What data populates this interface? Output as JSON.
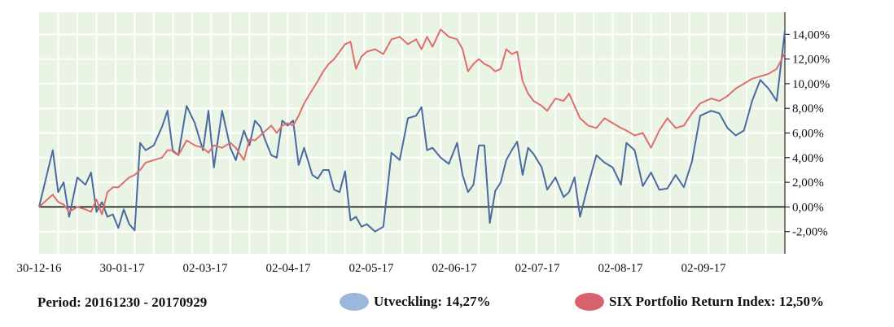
{
  "chart_data": {
    "type": "line",
    "x_tick_labels": [
      "30-12-16",
      "30-01-17",
      "02-03-17",
      "02-04-17",
      "02-05-17",
      "02-06-17",
      "02-07-17",
      "02-08-17",
      "02-09-17"
    ],
    "y_tick_labels": [
      "14,00%",
      "12,00%",
      "10,00%",
      "8,00%",
      "6,00%",
      "4,00%",
      "2,00%",
      "0,00%",
      "-2,00%"
    ],
    "y_ticks": [
      14,
      12,
      10,
      8,
      6,
      4,
      2,
      0,
      -2
    ],
    "ylim": [
      -3.8,
      15.8
    ],
    "xlim": [
      "2016-12-30",
      "2017-09-29"
    ],
    "grid": true,
    "colors": {
      "plot_background": "#eaf4e4",
      "grid": "#ffffff",
      "zero_line": "#000000",
      "series_1": "#4a6aa0",
      "series_2": "#e06e6e"
    },
    "series": [
      {
        "name": "Utveckling",
        "x": [
          "2016-12-30",
          "2017-01-04",
          "2017-01-06",
          "2017-01-08",
          "2017-01-10",
          "2017-01-13",
          "2017-01-16",
          "2017-01-18",
          "2017-01-20",
          "2017-01-22",
          "2017-01-24",
          "2017-01-26",
          "2017-01-28",
          "2017-01-30",
          "2017-02-01",
          "2017-02-03",
          "2017-02-05",
          "2017-02-07",
          "2017-02-10",
          "2017-02-13",
          "2017-02-15",
          "2017-02-17",
          "2017-02-19",
          "2017-02-22",
          "2017-02-25",
          "2017-02-28",
          "2017-03-02",
          "2017-03-04",
          "2017-03-07",
          "2017-03-10",
          "2017-03-12",
          "2017-03-15",
          "2017-03-17",
          "2017-03-19",
          "2017-03-21",
          "2017-03-23",
          "2017-03-25",
          "2017-03-27",
          "2017-03-29",
          "2017-03-31",
          "2017-04-02",
          "2017-04-04",
          "2017-04-06",
          "2017-04-09",
          "2017-04-11",
          "2017-04-13",
          "2017-04-15",
          "2017-04-17",
          "2017-04-19",
          "2017-04-21",
          "2017-04-23",
          "2017-04-25",
          "2017-04-27",
          "2017-04-29",
          "2017-05-02",
          "2017-05-05",
          "2017-05-08",
          "2017-05-11",
          "2017-05-14",
          "2017-05-17",
          "2017-05-19",
          "2017-05-21",
          "2017-05-23",
          "2017-05-26",
          "2017-05-29",
          "2017-06-01",
          "2017-06-03",
          "2017-06-05",
          "2017-06-07",
          "2017-06-09",
          "2017-06-11",
          "2017-06-13",
          "2017-06-15",
          "2017-06-17",
          "2017-06-19",
          "2017-06-21",
          "2017-06-23",
          "2017-06-25",
          "2017-06-27",
          "2017-06-29",
          "2017-07-02",
          "2017-07-04",
          "2017-07-07",
          "2017-07-10",
          "2017-07-12",
          "2017-07-14",
          "2017-07-16",
          "2017-07-19",
          "2017-07-22",
          "2017-07-25",
          "2017-07-28",
          "2017-07-31",
          "2017-08-02",
          "2017-08-05",
          "2017-08-08",
          "2017-08-11",
          "2017-08-14",
          "2017-08-17",
          "2017-08-20",
          "2017-08-23",
          "2017-08-26",
          "2017-08-29",
          "2017-09-02",
          "2017-09-05",
          "2017-09-08",
          "2017-09-11",
          "2017-09-14",
          "2017-09-17",
          "2017-09-20",
          "2017-09-23",
          "2017-09-26",
          "2017-09-29"
        ],
        "values": [
          0.0,
          4.6,
          1.2,
          2.0,
          -0.8,
          2.4,
          1.8,
          2.8,
          -0.4,
          0.4,
          -0.8,
          -0.6,
          -1.7,
          -0.2,
          -1.4,
          -1.9,
          5.2,
          4.6,
          5.0,
          6.5,
          7.8,
          4.5,
          4.2,
          8.2,
          6.8,
          4.6,
          7.8,
          3.2,
          7.8,
          4.8,
          3.8,
          6.2,
          5.0,
          7.0,
          6.5,
          5.3,
          4.2,
          4.0,
          7.0,
          6.6,
          7.0,
          3.4,
          4.8,
          2.6,
          2.3,
          3.0,
          3.0,
          1.4,
          1.2,
          2.9,
          -1.1,
          -0.8,
          -1.6,
          -1.4,
          -2.0,
          -1.6,
          4.4,
          3.8,
          7.2,
          7.4,
          8.1,
          4.6,
          4.8,
          4.0,
          3.5,
          5.2,
          2.6,
          1.2,
          1.8,
          5.0,
          5.0,
          -1.3,
          1.3,
          2.0,
          3.8,
          4.6,
          5.3,
          2.6,
          4.8,
          4.3,
          3.2,
          1.4,
          2.4,
          0.8,
          1.2,
          2.4,
          -0.8,
          1.8,
          4.2,
          3.6,
          3.2,
          1.8,
          5.2,
          4.6,
          1.7,
          2.8,
          1.4,
          1.5,
          2.6,
          1.6,
          3.7,
          7.4,
          7.8,
          7.6,
          6.4,
          5.8,
          6.2,
          8.6,
          10.3,
          9.6,
          8.6,
          14.3
        ]
      },
      {
        "name": "SIX Portfolio Return Index",
        "x": [
          "2016-12-30",
          "2017-01-04",
          "2017-01-06",
          "2017-01-08",
          "2017-01-10",
          "2017-01-13",
          "2017-01-16",
          "2017-01-18",
          "2017-01-20",
          "2017-01-22",
          "2017-01-24",
          "2017-01-26",
          "2017-01-28",
          "2017-01-30",
          "2017-02-01",
          "2017-02-03",
          "2017-02-05",
          "2017-02-07",
          "2017-02-10",
          "2017-02-13",
          "2017-02-15",
          "2017-02-17",
          "2017-02-19",
          "2017-02-22",
          "2017-02-25",
          "2017-02-28",
          "2017-03-02",
          "2017-03-04",
          "2017-03-07",
          "2017-03-10",
          "2017-03-12",
          "2017-03-15",
          "2017-03-17",
          "2017-03-19",
          "2017-03-21",
          "2017-03-23",
          "2017-03-25",
          "2017-03-27",
          "2017-03-29",
          "2017-03-31",
          "2017-04-02",
          "2017-04-04",
          "2017-04-06",
          "2017-04-09",
          "2017-04-11",
          "2017-04-13",
          "2017-04-15",
          "2017-04-17",
          "2017-04-19",
          "2017-04-21",
          "2017-04-23",
          "2017-04-25",
          "2017-04-27",
          "2017-04-29",
          "2017-05-02",
          "2017-05-05",
          "2017-05-08",
          "2017-05-11",
          "2017-05-14",
          "2017-05-17",
          "2017-05-19",
          "2017-05-21",
          "2017-05-23",
          "2017-05-26",
          "2017-05-29",
          "2017-06-01",
          "2017-06-03",
          "2017-06-05",
          "2017-06-07",
          "2017-06-09",
          "2017-06-11",
          "2017-06-13",
          "2017-06-15",
          "2017-06-17",
          "2017-06-19",
          "2017-06-21",
          "2017-06-23",
          "2017-06-25",
          "2017-06-27",
          "2017-06-29",
          "2017-07-02",
          "2017-07-04",
          "2017-07-07",
          "2017-07-10",
          "2017-07-12",
          "2017-07-14",
          "2017-07-16",
          "2017-07-19",
          "2017-07-22",
          "2017-07-25",
          "2017-07-28",
          "2017-07-31",
          "2017-08-02",
          "2017-08-05",
          "2017-08-08",
          "2017-08-11",
          "2017-08-14",
          "2017-08-17",
          "2017-08-20",
          "2017-08-23",
          "2017-08-26",
          "2017-08-29",
          "2017-09-02",
          "2017-09-05",
          "2017-09-08",
          "2017-09-11",
          "2017-09-14",
          "2017-09-17",
          "2017-09-20",
          "2017-09-23",
          "2017-09-26",
          "2017-09-29"
        ],
        "values": [
          0.0,
          1.0,
          0.4,
          0.2,
          -0.4,
          0.0,
          -0.2,
          -0.4,
          0.6,
          -0.6,
          1.2,
          1.6,
          1.6,
          2.0,
          2.4,
          2.6,
          3.0,
          3.6,
          3.8,
          4.0,
          4.6,
          4.6,
          4.2,
          5.4,
          5.0,
          4.8,
          4.4,
          5.0,
          4.8,
          5.2,
          4.8,
          3.8,
          5.5,
          5.4,
          5.8,
          6.2,
          6.6,
          6.0,
          6.6,
          6.8,
          6.6,
          7.4,
          8.4,
          9.5,
          10.2,
          11.0,
          11.6,
          12.0,
          12.6,
          13.2,
          13.4,
          11.2,
          12.2,
          12.6,
          12.8,
          12.4,
          13.6,
          13.8,
          13.2,
          13.6,
          12.8,
          13.8,
          13.0,
          14.4,
          13.8,
          13.6,
          12.8,
          11.0,
          11.6,
          12.0,
          11.6,
          11.4,
          11.0,
          11.2,
          12.8,
          12.4,
          12.6,
          10.2,
          9.2,
          8.6,
          8.2,
          7.8,
          8.8,
          8.6,
          9.2,
          8.2,
          7.2,
          6.6,
          6.4,
          7.2,
          6.8,
          6.4,
          6.2,
          5.8,
          6.0,
          4.8,
          6.2,
          7.2,
          6.4,
          6.6,
          7.6,
          8.4,
          8.8,
          8.6,
          9.0,
          9.6,
          10.0,
          10.4,
          10.6,
          10.8,
          11.2,
          12.5
        ]
      }
    ]
  },
  "footer": {
    "period": "Period: 20161230 - 20170929",
    "legend": [
      {
        "label": "Utveckling: 14,27%",
        "color": "#9ab8dc"
      },
      {
        "label": "SIX Portfolio Return Index: 12,50%",
        "color": "#d7616d"
      }
    ]
  }
}
